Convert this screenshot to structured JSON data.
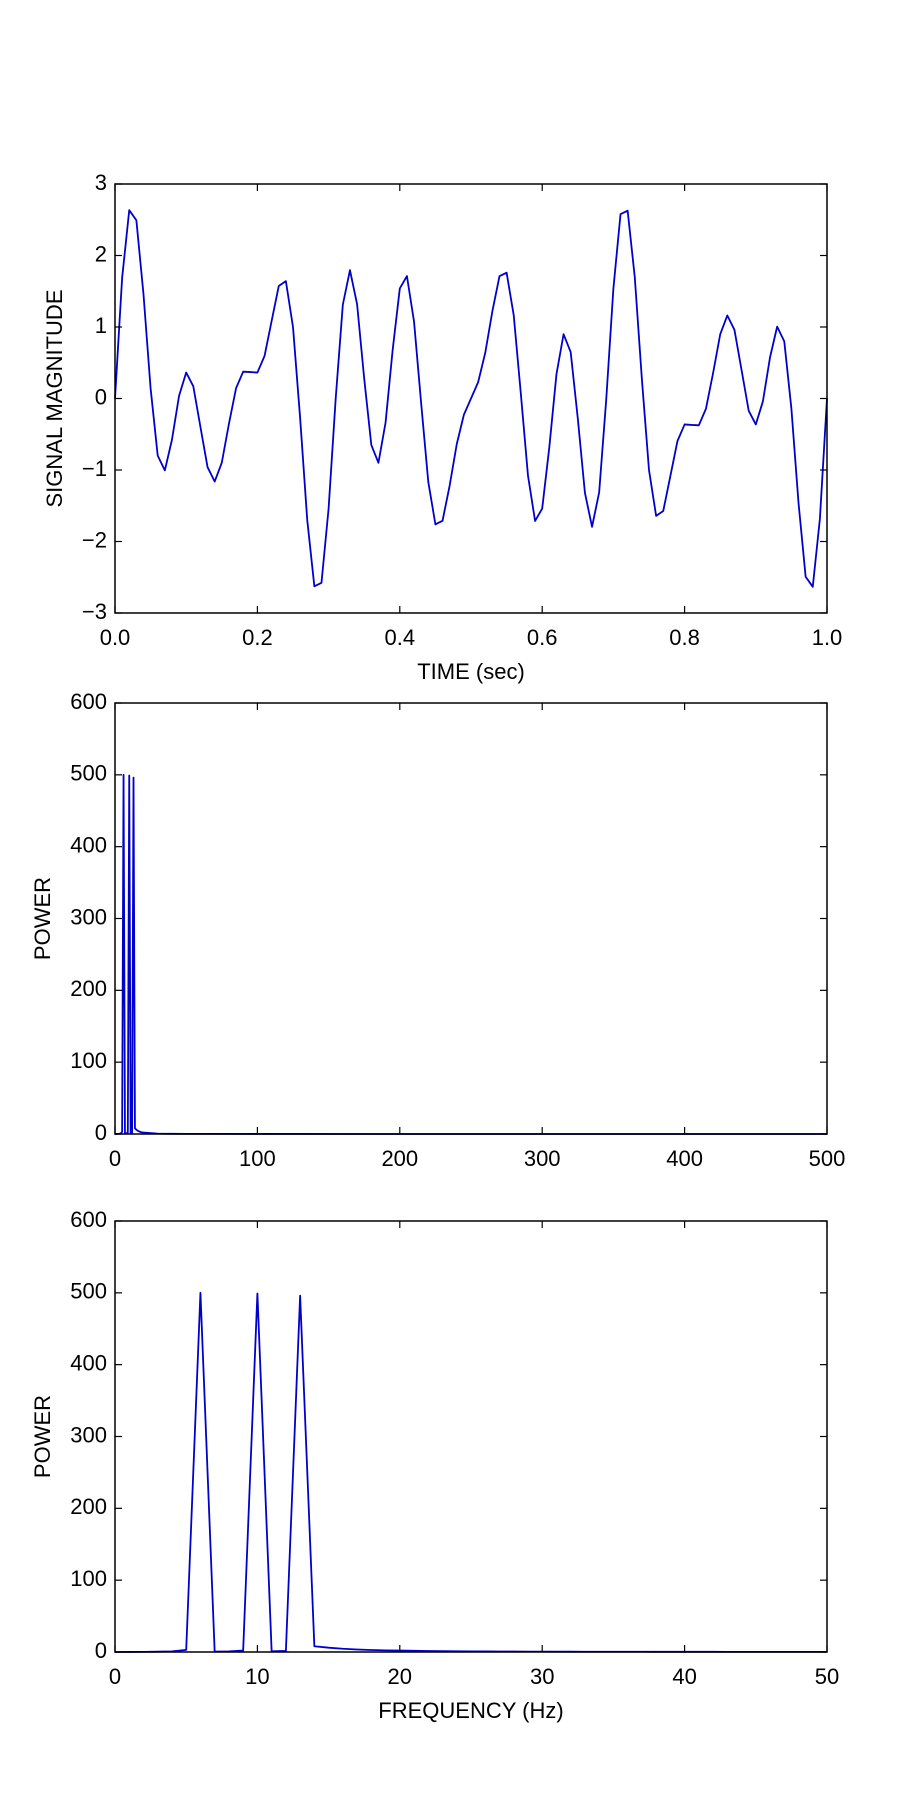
{
  "chart_data": [
    {
      "type": "line",
      "y_label": "SIGNAL MAGNITUDE",
      "x_label": "TIME (sec)",
      "color": "#0000cc",
      "x": [
        0,
        0.01,
        0.02,
        0.03,
        0.04,
        0.05,
        0.06,
        0.07,
        0.08,
        0.09,
        0.1,
        0.11,
        0.12,
        0.13,
        0.14,
        0.15,
        0.16,
        0.17,
        0.18,
        0.19,
        0.2,
        0.21,
        0.22,
        0.23,
        0.24,
        0.25,
        0.26,
        0.27,
        0.28,
        0.29,
        0.3,
        0.31,
        0.32,
        0.33,
        0.34,
        0.35,
        0.36,
        0.37,
        0.38,
        0.39,
        0.4,
        0.41,
        0.42,
        0.43,
        0.44,
        0.45,
        0.46,
        0.47,
        0.48,
        0.49,
        0.5,
        0.51,
        0.52,
        0.53,
        0.54,
        0.55,
        0.56,
        0.57,
        0.58,
        0.59,
        0.6,
        0.61,
        0.62,
        0.63,
        0.64,
        0.65,
        0.66,
        0.67,
        0.68,
        0.69,
        0.7,
        0.71,
        0.72,
        0.73,
        0.74,
        0.75,
        0.76,
        0.77,
        0.78,
        0.79,
        0.8,
        0.81,
        0.82,
        0.83,
        0.84,
        0.85,
        0.86,
        0.87,
        0.88,
        0.89,
        0.9,
        0.91,
        0.92,
        0.93,
        0.94,
        0.95,
        0.96,
        0.97,
        0.98,
        0.99,
        1.0
      ],
      "values": [
        0,
        1.685,
        2.634,
        2.493,
        1.461,
        0.142,
        -0.799,
        -1.005,
        -0.577,
        0.039,
        0.363,
        0.17,
        -0.399,
        -0.961,
        -1.161,
        -0.897,
        -0.355,
        0.143,
        0.375,
        0.37,
        0.363,
        0.594,
        1.085,
        1.573,
        1.641,
        1.0,
        -0.271,
        -1.699,
        -2.627,
        -2.578,
        -1.539,
        0.004,
        1.313,
        1.795,
        1.319,
        0.279,
        -0.649,
        -0.899,
        -0.337,
        0.682,
        1.539,
        1.713,
        1.075,
        -0.067,
        -1.165,
        -1.76,
        -1.711,
        -1.219,
        -0.638,
        -0.227,
        0,
        0.227,
        0.638,
        1.219,
        1.711,
        1.76,
        1.165,
        0.067,
        -1.075,
        -1.713,
        -1.539,
        -0.682,
        0.337,
        0.899,
        0.649,
        -0.279,
        -1.319,
        -1.795,
        -1.313,
        -0.004,
        1.539,
        2.578,
        2.627,
        1.699,
        0.271,
        -1.0,
        -1.641,
        -1.573,
        -1.085,
        -0.594,
        -0.363,
        -0.37,
        -0.375,
        -0.143,
        0.355,
        0.897,
        1.161,
        0.961,
        0.399,
        -0.17,
        -0.363,
        -0.039,
        0.577,
        1.005,
        0.799,
        -0.142,
        -1.461,
        -2.493,
        -2.634,
        -1.685,
        0
      ],
      "xlim": [
        0,
        1
      ],
      "ylim": [
        -3,
        3
      ],
      "xticks": [
        {
          "value": 0,
          "label": "0.0"
        },
        0.2,
        0.4,
        0.6,
        0.8,
        {
          "value": 1,
          "label": "1.0"
        }
      ],
      "yticks": [
        {
          "value": -3,
          "label": "−3"
        },
        {
          "value": -2,
          "label": "−2"
        },
        {
          "value": -1,
          "label": "−1"
        },
        0,
        1,
        2,
        3
      ]
    },
    {
      "type": "line",
      "y_label": "POWER",
      "color": "#0000cc",
      "x": [
        0,
        1,
        2,
        3,
        4,
        5,
        6,
        7,
        8,
        9,
        10,
        11,
        12,
        13,
        14,
        15,
        16,
        17,
        18,
        19,
        20,
        30,
        40,
        50,
        100,
        200,
        300,
        400,
        500
      ],
      "values": [
        0,
        0.1,
        0.2,
        0.4,
        0.8,
        3,
        500,
        0.5,
        0.8,
        2,
        499,
        1,
        1.5,
        496,
        8,
        6,
        4.5,
        3.5,
        2.8,
        2.3,
        2,
        0.5,
        0.25,
        0.15,
        0.05,
        0.02,
        0.01,
        0.01,
        0.01
      ],
      "xlim": [
        0,
        500
      ],
      "ylim": [
        0,
        600
      ],
      "xticks": [
        0,
        100,
        200,
        300,
        400,
        500
      ],
      "yticks": [
        0,
        100,
        200,
        300,
        400,
        500,
        600
      ]
    },
    {
      "type": "line",
      "y_label": "POWER",
      "x_label": "FREQUENCY (Hz)",
      "color": "#0000cc",
      "x": [
        0,
        1,
        2,
        3,
        4,
        5,
        6,
        7,
        8,
        9,
        10,
        11,
        12,
        13,
        14,
        15,
        16,
        17,
        18,
        19,
        20,
        21,
        22,
        23,
        24,
        25,
        26,
        27,
        28,
        29,
        30,
        31,
        32,
        33,
        34,
        35,
        36,
        37,
        38,
        39,
        40,
        41,
        42,
        43,
        44,
        45,
        46,
        47,
        48,
        49,
        50
      ],
      "values": [
        0,
        0.1,
        0.2,
        0.4,
        0.8,
        3,
        500,
        0.5,
        0.8,
        2,
        499,
        1,
        1.5,
        496,
        8,
        6,
        4.5,
        3.5,
        2.8,
        2.3,
        2,
        1.7,
        1.4,
        1.2,
        1.0,
        0.9,
        0.8,
        0.7,
        0.6,
        0.55,
        0.5,
        0.45,
        0.42,
        0.39,
        0.36,
        0.34,
        0.32,
        0.3,
        0.28,
        0.26,
        0.25,
        0.24,
        0.23,
        0.22,
        0.21,
        0.2,
        0.19,
        0.18,
        0.17,
        0.16,
        0.15
      ],
      "xlim": [
        0,
        50
      ],
      "ylim": [
        0,
        600
      ],
      "xticks": [
        0,
        10,
        20,
        30,
        40,
        50
      ],
      "yticks": [
        0,
        100,
        200,
        300,
        400,
        500,
        600
      ]
    }
  ]
}
